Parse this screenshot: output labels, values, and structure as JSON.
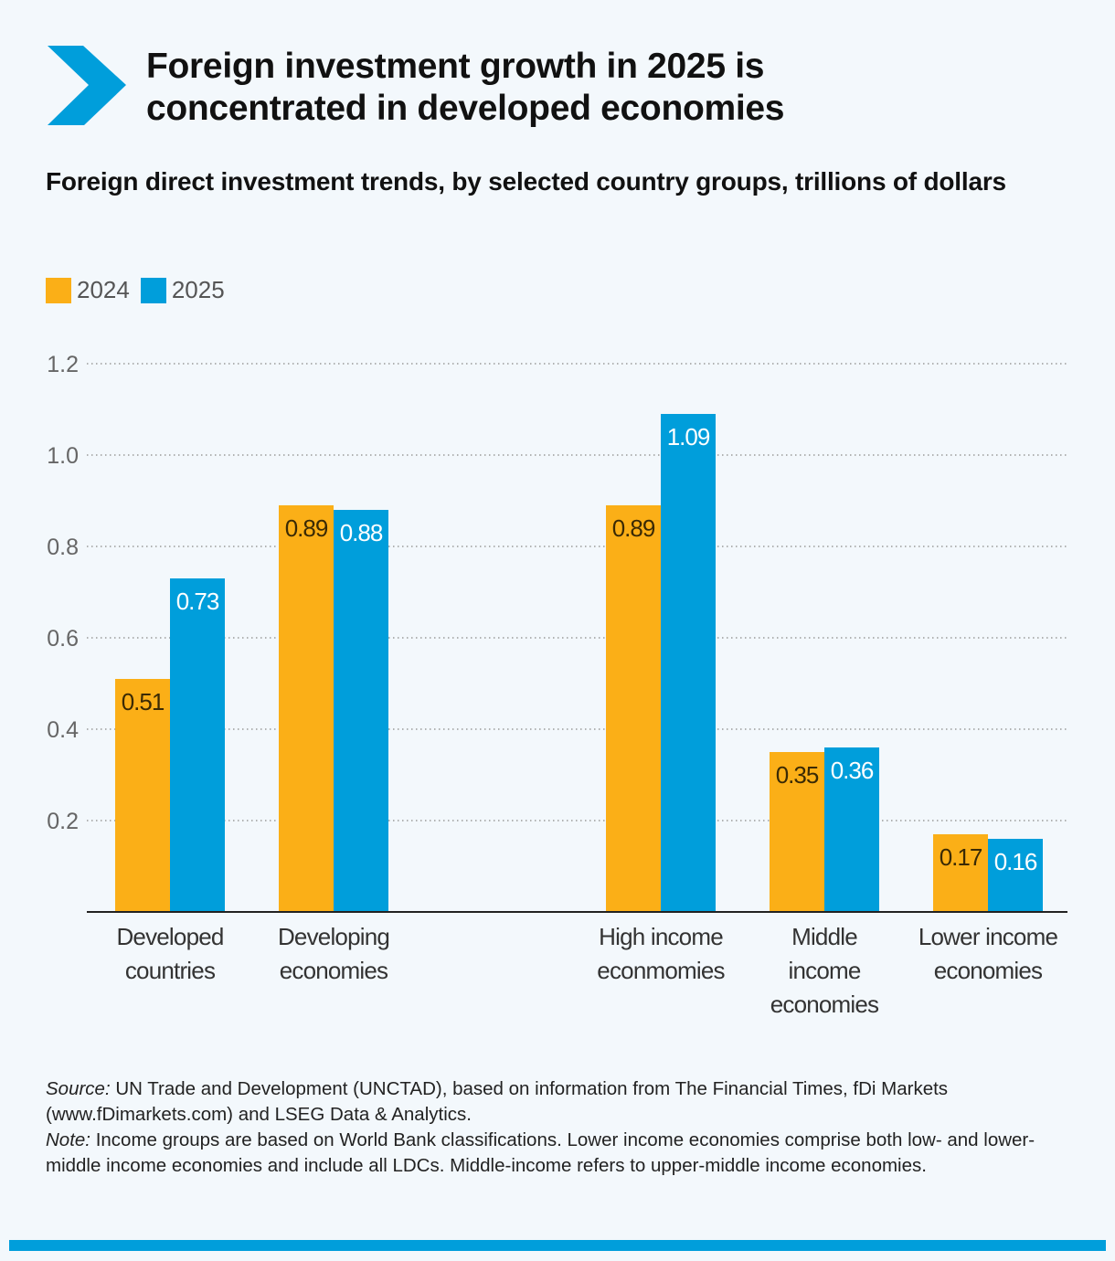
{
  "title": "Foreign investment growth in 2025 is concentrated in developed economies",
  "subtitle": "Foreign direct investment trends, by selected country groups, trillions of dollars",
  "colors": {
    "accent": "#009edb",
    "series_2024": "#fbaf17",
    "series_2025": "#009edb",
    "background": "#f3f8fc"
  },
  "chart_data": {
    "type": "bar",
    "title": "",
    "xlabel": "",
    "ylabel": "",
    "ylim": [
      0,
      1.2
    ],
    "yticks": [
      "0.2",
      "0.4",
      "0.6",
      "0.8",
      "1.0",
      "1.2"
    ],
    "grid": true,
    "legend_placement": "top-left",
    "categories": [
      [
        "Developed",
        "countries"
      ],
      [
        "Developing",
        "economies"
      ],
      [
        "High income",
        "econmomies"
      ],
      [
        "Middle",
        "income",
        "economies"
      ],
      [
        "Lower income",
        "economies"
      ]
    ],
    "series": [
      {
        "name": "2024",
        "values": [
          0.51,
          0.89,
          0.89,
          0.35,
          0.17
        ],
        "labels": [
          "0.51",
          "0.89",
          "0.89",
          "0.35",
          "0.17"
        ]
      },
      {
        "name": "2025",
        "values": [
          0.73,
          0.88,
          1.09,
          0.36,
          0.16
        ],
        "labels": [
          "0.73",
          "0.88",
          "1.09",
          "0.36",
          "0.16"
        ]
      }
    ]
  },
  "notes": {
    "source_label": "Source:",
    "source_text": " UN Trade and Development (UNCTAD), based on information from The Financial Times, fDi Markets (www.fDimarkets.com) and LSEG Data & Analytics.",
    "note_label": "Note:",
    "note_text": " Income groups are based on World Bank classifications. Lower income economies comprise both low- and lower-middle income economies and include all LDCs. Middle-income refers to upper-middle income economies."
  }
}
